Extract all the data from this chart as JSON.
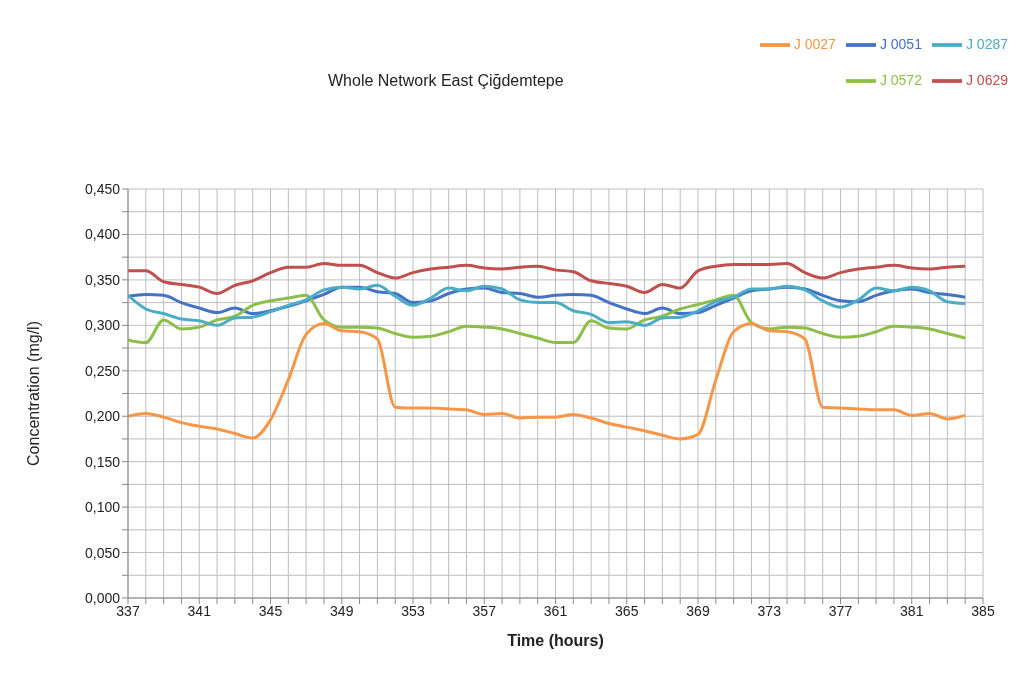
{
  "chart_data": {
    "type": "line",
    "title": "Whole Network  East Çiğdemtepe",
    "xlabel": "Time  (hours)",
    "ylabel": "Concentration  (mg/l)",
    "x": [
      337,
      338,
      339,
      340,
      341,
      342,
      343,
      344,
      345,
      346,
      347,
      348,
      349,
      350,
      351,
      352,
      353,
      354,
      355,
      356,
      357,
      358,
      359,
      360,
      361,
      362,
      363,
      364,
      365,
      366,
      367,
      368,
      369,
      370,
      371,
      372,
      373,
      374,
      375,
      376,
      377,
      378,
      379,
      380,
      381,
      382,
      383,
      384
    ],
    "series": [
      {
        "name": "J 0629",
        "color": "#c0504d",
        "values": [
          0.36,
          0.36,
          0.348,
          0.345,
          0.342,
          0.335,
          0.344,
          0.349,
          0.358,
          0.364,
          0.364,
          0.368,
          0.366,
          0.366,
          0.358,
          0.352,
          0.358,
          0.362,
          0.364,
          0.366,
          0.363,
          0.362,
          0.364,
          0.365,
          0.361,
          0.359,
          0.349,
          0.346,
          0.343,
          0.336,
          0.345,
          0.341,
          0.36,
          0.365,
          0.367,
          0.367,
          0.367,
          0.368,
          0.358,
          0.352,
          0.358,
          0.362,
          0.364,
          0.366,
          0.363,
          0.362,
          0.364,
          0.365
        ]
      },
      {
        "name": "J 0051",
        "color": "#4472c4",
        "values": [
          0.332,
          0.334,
          0.333,
          0.325,
          0.319,
          0.314,
          0.319,
          0.313,
          0.316,
          0.321,
          0.327,
          0.334,
          0.342,
          0.342,
          0.337,
          0.335,
          0.325,
          0.327,
          0.335,
          0.34,
          0.341,
          0.336,
          0.335,
          0.331,
          0.333,
          0.334,
          0.333,
          0.325,
          0.318,
          0.313,
          0.319,
          0.313,
          0.314,
          0.322,
          0.33,
          0.338,
          0.34,
          0.342,
          0.34,
          0.333,
          0.327,
          0.326,
          0.333,
          0.338,
          0.34,
          0.336,
          0.334,
          0.331
        ]
      },
      {
        "name": "J 0572",
        "color": "#8cbf4a",
        "values": [
          0.284,
          0.281,
          0.306,
          0.296,
          0.298,
          0.306,
          0.31,
          0.322,
          0.327,
          0.33,
          0.333,
          0.306,
          0.298,
          0.298,
          0.297,
          0.291,
          0.287,
          0.288,
          0.293,
          0.299,
          0.298,
          0.296,
          0.291,
          0.286,
          0.281,
          0.281,
          0.305,
          0.297,
          0.296,
          0.306,
          0.31,
          0.318,
          0.323,
          0.328,
          0.333,
          0.303,
          0.296,
          0.298,
          0.297,
          0.291,
          0.287,
          0.288,
          0.293,
          0.299,
          0.298,
          0.296,
          0.291,
          0.286
        ]
      },
      {
        "name": "J 0027",
        "color": "#f79646",
        "values": [
          0.2,
          0.203,
          0.199,
          0.193,
          0.189,
          0.186,
          0.181,
          0.176,
          0.196,
          0.24,
          0.29,
          0.302,
          0.294,
          0.293,
          0.285,
          0.21,
          0.209,
          0.209,
          0.208,
          0.207,
          0.202,
          0.203,
          0.198,
          0.199,
          0.199,
          0.202,
          0.198,
          0.192,
          0.188,
          0.184,
          0.179,
          0.175,
          0.18,
          0.24,
          0.293,
          0.302,
          0.294,
          0.293,
          0.285,
          0.21,
          0.209,
          0.208,
          0.207,
          0.207,
          0.201,
          0.203,
          0.197,
          0.201
        ]
      },
      {
        "name": "J 0287",
        "color": "#4bacc6",
        "values": [
          0.333,
          0.318,
          0.313,
          0.307,
          0.305,
          0.3,
          0.308,
          0.309,
          0.315,
          0.322,
          0.328,
          0.339,
          0.342,
          0.34,
          0.344,
          0.332,
          0.322,
          0.33,
          0.341,
          0.338,
          0.343,
          0.34,
          0.328,
          0.325,
          0.325,
          0.316,
          0.312,
          0.303,
          0.304,
          0.3,
          0.308,
          0.309,
          0.316,
          0.326,
          0.331,
          0.34,
          0.34,
          0.343,
          0.339,
          0.327,
          0.32,
          0.328,
          0.341,
          0.338,
          0.342,
          0.338,
          0.326,
          0.324
        ]
      }
    ],
    "xlim": [
      337,
      385
    ],
    "xticks": [
      337,
      {
        "value": 338,
        "label": null
      },
      {
        "value": 339,
        "label": null
      },
      {
        "value": 340,
        "label": null
      },
      341,
      {
        "value": 342,
        "label": null
      },
      {
        "value": 343,
        "label": null
      },
      {
        "value": 344,
        "label": null
      },
      345,
      {
        "value": 346,
        "label": null
      },
      {
        "value": 347,
        "label": null
      },
      {
        "value": 348,
        "label": null
      },
      349,
      {
        "value": 350,
        "label": null
      },
      {
        "value": 351,
        "label": null
      },
      {
        "value": 352,
        "label": null
      },
      353,
      {
        "value": 354,
        "label": null
      },
      {
        "value": 355,
        "label": null
      },
      {
        "value": 356,
        "label": null
      },
      357,
      {
        "value": 358,
        "label": null
      },
      {
        "value": 359,
        "label": null
      },
      {
        "value": 360,
        "label": null
      },
      361,
      {
        "value": 362,
        "label": null
      },
      {
        "value": 363,
        "label": null
      },
      {
        "value": 364,
        "label": null
      },
      365,
      {
        "value": 366,
        "label": null
      },
      {
        "value": 367,
        "label": null
      },
      {
        "value": 368,
        "label": null
      },
      369,
      {
        "value": 370,
        "label": null
      },
      {
        "value": 371,
        "label": null
      },
      {
        "value": 372,
        "label": null
      },
      373,
      {
        "value": 374,
        "label": null
      },
      {
        "value": 375,
        "label": null
      },
      {
        "value": 376,
        "label": null
      },
      377,
      {
        "value": 378,
        "label": null
      },
      {
        "value": 379,
        "label": null
      },
      {
        "value": 380,
        "label": null
      },
      381,
      {
        "value": 382,
        "label": null
      },
      {
        "value": 383,
        "label": null
      },
      {
        "value": 384,
        "label": null
      },
      385
    ],
    "ylim": [
      0,
      0.45
    ],
    "yticks": [
      {
        "value": 0,
        "label": "0,000"
      },
      {
        "value": 0.025,
        "label": null
      },
      {
        "value": 0.05,
        "label": "0,050"
      },
      {
        "value": 0.075,
        "label": null
      },
      {
        "value": 0.1,
        "label": "0,100"
      },
      {
        "value": 0.125,
        "label": null
      },
      {
        "value": 0.15,
        "label": "0,150"
      },
      {
        "value": 0.175,
        "label": null
      },
      {
        "value": 0.2,
        "label": "0,200"
      },
      {
        "value": 0.225,
        "label": null
      },
      {
        "value": 0.25,
        "label": "0,250"
      },
      {
        "value": 0.275,
        "label": null
      },
      {
        "value": 0.3,
        "label": "0,300"
      },
      {
        "value": 0.325,
        "label": null
      },
      {
        "value": 0.35,
        "label": "0,350"
      },
      {
        "value": 0.375,
        "label": null
      },
      {
        "value": 0.4,
        "label": "0,400"
      },
      {
        "value": 0.425,
        "label": null
      },
      {
        "value": 0.45,
        "label": "0,450"
      }
    ],
    "grid": true,
    "legend": "top right",
    "marker": "none",
    "line_style": "solid"
  }
}
